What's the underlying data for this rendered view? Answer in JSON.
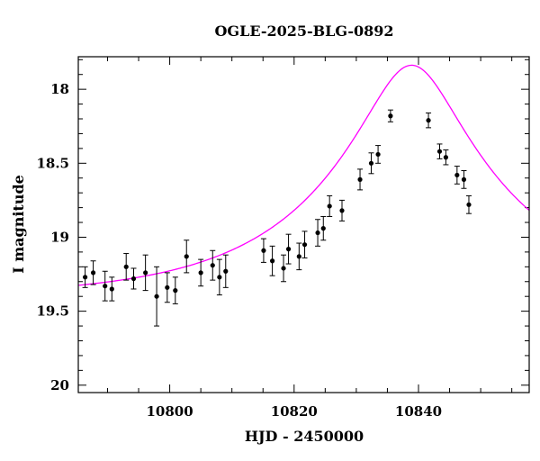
{
  "chart_data": {
    "type": "scatter",
    "title": "OGLE-2025-BLG-0892",
    "xlabel": "HJD - 2450000",
    "ylabel": "I magnitude",
    "xlim": [
      10785.3,
      10857.8
    ],
    "ylim": [
      20.05,
      17.78
    ],
    "y_inverted": true,
    "xticks": [
      10800,
      10820,
      10840
    ],
    "yticks": [
      18,
      18.5,
      19,
      19.5,
      20
    ],
    "ytick_labels": [
      "18",
      "18.5",
      "19",
      "19.5",
      "20"
    ],
    "grid": false,
    "model_color": "#ff00ff",
    "point_color": "#000000",
    "model": {
      "kind": "microlensing-pspl",
      "t0": 10838.9,
      "tE": 30,
      "u0": 0.24,
      "baseline_mag": 19.41
    },
    "series": [
      {
        "points": [
          {
            "x": 10786.4,
            "y": 19.27,
            "err": 0.07
          },
          {
            "x": 10787.7,
            "y": 19.24,
            "err": 0.08
          },
          {
            "x": 10789.6,
            "y": 19.33,
            "err": 0.1
          },
          {
            "x": 10790.7,
            "y": 19.35,
            "err": 0.08
          },
          {
            "x": 10793.0,
            "y": 19.2,
            "err": 0.09
          },
          {
            "x": 10794.2,
            "y": 19.28,
            "err": 0.07
          },
          {
            "x": 10796.1,
            "y": 19.24,
            "err": 0.12
          },
          {
            "x": 10797.9,
            "y": 19.4,
            "err": 0.2
          },
          {
            "x": 10799.6,
            "y": 19.34,
            "err": 0.1
          },
          {
            "x": 10800.9,
            "y": 19.36,
            "err": 0.09
          },
          {
            "x": 10802.7,
            "y": 19.13,
            "err": 0.11
          },
          {
            "x": 10805.0,
            "y": 19.24,
            "err": 0.09
          },
          {
            "x": 10806.9,
            "y": 19.19,
            "err": 0.1
          },
          {
            "x": 10808.0,
            "y": 19.27,
            "err": 0.12
          },
          {
            "x": 10809.0,
            "y": 19.23,
            "err": 0.11
          },
          {
            "x": 10815.1,
            "y": 19.09,
            "err": 0.08
          },
          {
            "x": 10816.5,
            "y": 19.16,
            "err": 0.1
          },
          {
            "x": 10818.3,
            "y": 19.21,
            "err": 0.09
          },
          {
            "x": 10819.1,
            "y": 19.08,
            "err": 0.1
          },
          {
            "x": 10820.8,
            "y": 19.13,
            "err": 0.09
          },
          {
            "x": 10821.7,
            "y": 19.05,
            "err": 0.09
          },
          {
            "x": 10823.8,
            "y": 18.97,
            "err": 0.09
          },
          {
            "x": 10824.7,
            "y": 18.94,
            "err": 0.08
          },
          {
            "x": 10825.7,
            "y": 18.79,
            "err": 0.07
          },
          {
            "x": 10827.7,
            "y": 18.82,
            "err": 0.07
          },
          {
            "x": 10830.6,
            "y": 18.61,
            "err": 0.07
          },
          {
            "x": 10832.4,
            "y": 18.5,
            "err": 0.07
          },
          {
            "x": 10833.5,
            "y": 18.44,
            "err": 0.06
          },
          {
            "x": 10835.5,
            "y": 18.18,
            "err": 0.04
          },
          {
            "x": 10841.6,
            "y": 18.21,
            "err": 0.05
          },
          {
            "x": 10843.4,
            "y": 18.42,
            "err": 0.05
          },
          {
            "x": 10844.4,
            "y": 18.46,
            "err": 0.05
          },
          {
            "x": 10846.2,
            "y": 18.58,
            "err": 0.06
          },
          {
            "x": 10847.3,
            "y": 18.61,
            "err": 0.06
          },
          {
            "x": 10848.1,
            "y": 18.78,
            "err": 0.06
          }
        ]
      }
    ]
  }
}
